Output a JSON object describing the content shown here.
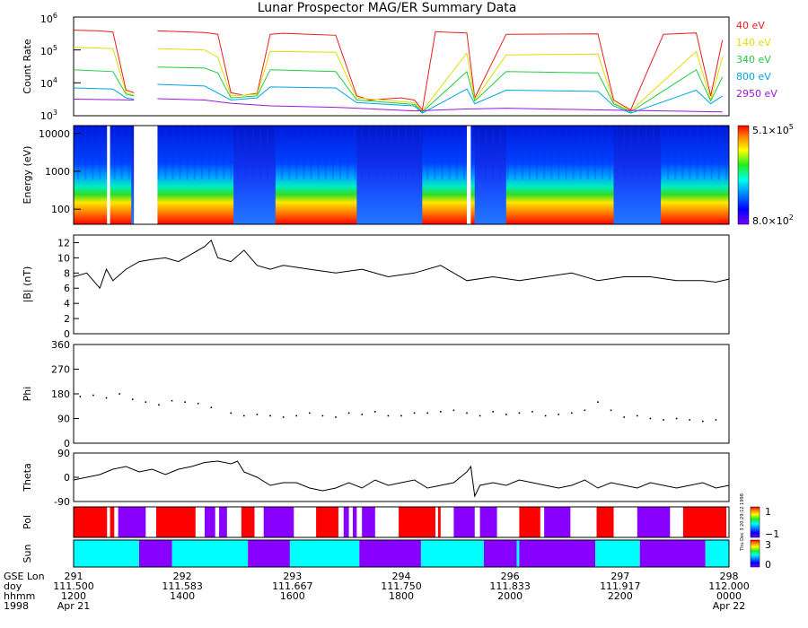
{
  "title": "Lunar Prospector MAG/ER Summary Data",
  "colors": {
    "frame": "#000000",
    "flux_40": "#ee1c1c",
    "flux_140": "#dede00",
    "flux_340": "#22cc44",
    "flux_800": "#00a6e0",
    "flux_2950": "#9a16d8",
    "pol_red": "#ff0000",
    "pol_purple": "#8800ff",
    "sun_cyan": "#00ffff",
    "sun_purple": "#8800ff"
  },
  "chart_data": [
    {
      "id": "count_rate",
      "type": "line",
      "ylabel": "Count Rate",
      "yscale": "log",
      "ylim": [
        1000,
        1000000
      ],
      "ytick_labels": [
        "10^3",
        "10^4",
        "10^5",
        "10^6"
      ],
      "legend_placement": "right",
      "gaps": [
        [
          111.546,
          111.564
        ]
      ],
      "series": [
        {
          "name": "40 eV",
          "color_key": "flux_40",
          "x": [
            111.5,
            111.52,
            111.53,
            111.54,
            111.546,
            111.564,
            111.6,
            111.61,
            111.62,
            111.63,
            111.64,
            111.65,
            111.66,
            111.68,
            111.7,
            111.716,
            111.726,
            111.75,
            111.76,
            111.766,
            111.776,
            111.79,
            111.8,
            111.806,
            111.83,
            111.9,
            111.912,
            111.925,
            111.95,
            111.975,
            111.986,
            111.995
          ],
          "values": [
            400000,
            380000,
            350000,
            6000,
            5000,
            380000,
            340000,
            300000,
            5000,
            4200,
            4800,
            300000,
            320000,
            300000,
            280000,
            4000,
            3000,
            3500,
            3000,
            1500,
            360000,
            340000,
            330000,
            3500,
            300000,
            310000,
            3000,
            1500,
            300000,
            330000,
            4000,
            200000
          ]
        },
        {
          "name": "140 eV",
          "color_key": "flux_140",
          "x": [
            111.5,
            111.53,
            111.54,
            111.546,
            111.564,
            111.6,
            111.61,
            111.62,
            111.64,
            111.65,
            111.7,
            111.716,
            111.76,
            111.766,
            111.8,
            111.806,
            111.83,
            111.9,
            111.912,
            111.925,
            111.975,
            111.986,
            111.995
          ],
          "values": [
            120000,
            110000,
            5000,
            4200,
            110000,
            100000,
            60000,
            4000,
            4500,
            90000,
            85000,
            3500,
            2500,
            1400,
            80000,
            3000,
            70000,
            75000,
            2500,
            1400,
            90000,
            3000,
            60000
          ]
        },
        {
          "name": "340 eV",
          "color_key": "flux_340",
          "x": [
            111.5,
            111.53,
            111.54,
            111.546,
            111.564,
            111.6,
            111.61,
            111.62,
            111.64,
            111.65,
            111.7,
            111.716,
            111.76,
            111.766,
            111.8,
            111.806,
            111.83,
            111.9,
            111.912,
            111.925,
            111.975,
            111.986,
            111.995
          ],
          "values": [
            25000,
            22000,
            4500,
            4000,
            30000,
            28000,
            20000,
            3500,
            4000,
            25000,
            22000,
            3000,
            2200,
            1300,
            22000,
            2800,
            22000,
            20000,
            2300,
            1300,
            25000,
            2800,
            15000
          ]
        },
        {
          "name": "800 eV",
          "color_key": "flux_800",
          "x": [
            111.5,
            111.53,
            111.54,
            111.546,
            111.564,
            111.6,
            111.62,
            111.64,
            111.65,
            111.7,
            111.716,
            111.76,
            111.766,
            111.8,
            111.806,
            111.83,
            111.9,
            111.912,
            111.925,
            111.975,
            111.986,
            111.995
          ],
          "values": [
            7000,
            6500,
            3500,
            3200,
            9000,
            8000,
            3000,
            3500,
            7500,
            7000,
            2500,
            2000,
            1200,
            6500,
            2300,
            6000,
            5500,
            2000,
            1200,
            6000,
            2300,
            4000
          ]
        },
        {
          "name": "2950 eV",
          "color_key": "flux_2950",
          "x": [
            111.5,
            111.546,
            111.564,
            111.6,
            111.62,
            111.65,
            111.7,
            111.76,
            111.8,
            111.83,
            111.9,
            111.95,
            111.995
          ],
          "values": [
            3200,
            3000,
            3300,
            3000,
            2400,
            2000,
            1800,
            1400,
            1600,
            1700,
            1500,
            1400,
            1300
          ]
        }
      ]
    },
    {
      "id": "energy_spectrogram",
      "type": "heatmap",
      "ylabel": "Energy (eV)",
      "yscale": "log",
      "ylim": [
        40,
        16000
      ],
      "ytick_labels": [
        "100",
        "1000",
        "10000"
      ],
      "colorbar_range": [
        800,
        510000
      ],
      "colorbar_max_label": "5.1×10^5",
      "colorbar_min_label": "8.0×10^2",
      "data_gaps": [
        [
          111.5255,
          111.5278
        ],
        [
          111.546,
          111.564
        ],
        [
          111.8,
          111.803
        ]
      ],
      "bright_intervals": [
        [
          111.5,
          111.544
        ],
        [
          111.564,
          111.622
        ],
        [
          111.654,
          111.716
        ],
        [
          111.766,
          111.806
        ],
        [
          111.83,
          111.912
        ],
        [
          111.948,
          112.0
        ]
      ]
    },
    {
      "id": "b_magnitude",
      "type": "line",
      "ylabel": "|B| (nT)",
      "ylim": [
        0,
        13
      ],
      "ytick_labels": [
        "0",
        "2",
        "4",
        "6",
        "8",
        "10",
        "12"
      ],
      "x": [
        111.5,
        111.51,
        111.52,
        111.525,
        111.53,
        111.54,
        111.55,
        111.56,
        111.57,
        111.58,
        111.59,
        111.6,
        111.605,
        111.61,
        111.62,
        111.63,
        111.64,
        111.65,
        111.66,
        111.68,
        111.7,
        111.72,
        111.74,
        111.76,
        111.78,
        111.8,
        111.82,
        111.84,
        111.86,
        111.88,
        111.9,
        111.92,
        111.94,
        111.96,
        111.98,
        111.99,
        112.0
      ],
      "values": [
        7.5,
        8.0,
        6.0,
        8.5,
        7.0,
        8.5,
        9.5,
        9.8,
        10.0,
        9.5,
        10.5,
        11.5,
        12.3,
        10.0,
        9.5,
        11.0,
        9.0,
        8.5,
        9.0,
        8.5,
        8.0,
        8.5,
        7.5,
        8.0,
        9.0,
        7.0,
        7.5,
        7.0,
        7.5,
        8.0,
        7.0,
        7.5,
        7.5,
        7.0,
        7.0,
        6.8,
        7.2
      ]
    },
    {
      "id": "phi",
      "type": "scatter",
      "ylabel": "Phi",
      "ylim": [
        0,
        360
      ],
      "ytick_labels": [
        "0",
        "90",
        "180",
        "270",
        "360"
      ],
      "x": [
        111.505,
        111.515,
        111.525,
        111.535,
        111.545,
        111.555,
        111.565,
        111.575,
        111.585,
        111.595,
        111.605,
        111.62,
        111.63,
        111.64,
        111.65,
        111.66,
        111.67,
        111.68,
        111.69,
        111.7,
        111.71,
        111.72,
        111.73,
        111.74,
        111.75,
        111.76,
        111.77,
        111.78,
        111.79,
        111.8,
        111.81,
        111.82,
        111.83,
        111.84,
        111.85,
        111.86,
        111.87,
        111.88,
        111.89,
        111.9,
        111.91,
        111.92,
        111.93,
        111.94,
        111.95,
        111.96,
        111.97,
        111.98,
        111.99
      ],
      "values": [
        170,
        175,
        165,
        180,
        160,
        150,
        140,
        155,
        150,
        145,
        130,
        110,
        100,
        105,
        100,
        95,
        100,
        110,
        100,
        95,
        110,
        105,
        115,
        100,
        100,
        110,
        110,
        115,
        120,
        110,
        100,
        115,
        105,
        110,
        115,
        100,
        105,
        110,
        120,
        150,
        120,
        95,
        100,
        90,
        85,
        90,
        85,
        80,
        85
      ]
    },
    {
      "id": "theta",
      "type": "line",
      "ylabel": "Theta",
      "ylim": [
        -90,
        90
      ],
      "ytick_labels": [
        "-90",
        "0",
        "90"
      ],
      "x": [
        111.5,
        111.51,
        111.52,
        111.53,
        111.54,
        111.55,
        111.56,
        111.57,
        111.58,
        111.59,
        111.6,
        111.61,
        111.62,
        111.625,
        111.63,
        111.64,
        111.65,
        111.66,
        111.67,
        111.68,
        111.69,
        111.7,
        111.71,
        111.72,
        111.73,
        111.74,
        111.75,
        111.76,
        111.77,
        111.78,
        111.79,
        111.8,
        111.803,
        111.806,
        111.81,
        111.82,
        111.83,
        111.84,
        111.85,
        111.86,
        111.87,
        111.88,
        111.89,
        111.9,
        111.91,
        111.92,
        111.93,
        111.94,
        111.95,
        111.96,
        111.97,
        111.98,
        111.99,
        112.0
      ],
      "values": [
        -10,
        0,
        10,
        30,
        40,
        20,
        30,
        10,
        30,
        40,
        55,
        60,
        50,
        60,
        20,
        0,
        -30,
        -20,
        -20,
        -40,
        -50,
        -40,
        -20,
        -40,
        -10,
        -30,
        -20,
        -10,
        -40,
        -30,
        -20,
        20,
        40,
        -70,
        -30,
        -20,
        -30,
        -10,
        -20,
        -30,
        -40,
        -30,
        -10,
        -40,
        -20,
        -30,
        -40,
        -20,
        -30,
        -40,
        -30,
        -20,
        -40,
        -30
      ]
    },
    {
      "id": "pol",
      "type": "heatmap",
      "ylabel": "Pol",
      "colorbar_labels": [
        "1",
        "−1"
      ],
      "segments": [
        {
          "x0": 111.5,
          "x1": 111.5255,
          "val": 1
        },
        {
          "x0": 111.5278,
          "x1": 111.531,
          "val": 1
        },
        {
          "x0": 111.534,
          "x1": 111.555,
          "val": -1
        },
        {
          "x0": 111.563,
          "x1": 111.593,
          "val": 1
        },
        {
          "x0": 111.6,
          "x1": 111.608,
          "val": -1
        },
        {
          "x0": 111.611,
          "x1": 111.617,
          "val": -1
        },
        {
          "x0": 111.628,
          "x1": 111.638,
          "val": 1
        },
        {
          "x0": 111.645,
          "x1": 111.668,
          "val": -1
        },
        {
          "x0": 111.685,
          "x1": 111.702,
          "val": 1
        },
        {
          "x0": 111.706,
          "x1": 111.71,
          "val": -1
        },
        {
          "x0": 111.713,
          "x1": 111.716,
          "val": -1
        },
        {
          "x0": 111.72,
          "x1": 111.73,
          "val": -1
        },
        {
          "x0": 111.748,
          "x1": 111.776,
          "val": 1
        },
        {
          "x0": 111.778,
          "x1": 111.78,
          "val": 1
        },
        {
          "x0": 111.79,
          "x1": 111.806,
          "val": -1
        },
        {
          "x0": 111.81,
          "x1": 111.823,
          "val": -1
        },
        {
          "x0": 111.84,
          "x1": 111.856,
          "val": 1
        },
        {
          "x0": 111.859,
          "x1": 111.879,
          "val": -1
        },
        {
          "x0": 111.899,
          "x1": 111.912,
          "val": 1
        },
        {
          "x0": 111.93,
          "x1": 111.955,
          "val": -1
        },
        {
          "x0": 111.965,
          "x1": 111.998,
          "val": 1
        }
      ]
    },
    {
      "id": "sun",
      "type": "heatmap",
      "ylabel": "Sun",
      "colorbar_labels": [
        "3",
        "0"
      ],
      "segments": [
        {
          "x0": 111.5,
          "x1": 111.55,
          "val": 3
        },
        {
          "x0": 111.55,
          "x1": 111.575,
          "val": 0
        },
        {
          "x0": 111.575,
          "x1": 111.633,
          "val": 3
        },
        {
          "x0": 111.633,
          "x1": 111.665,
          "val": 0
        },
        {
          "x0": 111.665,
          "x1": 111.718,
          "val": 3
        },
        {
          "x0": 111.718,
          "x1": 111.765,
          "val": 0
        },
        {
          "x0": 111.765,
          "x1": 111.813,
          "val": 3
        },
        {
          "x0": 111.813,
          "x1": 111.838,
          "val": 0
        },
        {
          "x0": 111.838,
          "x1": 111.84,
          "val": 3
        },
        {
          "x0": 111.84,
          "x1": 111.898,
          "val": 0
        },
        {
          "x0": 111.898,
          "x1": 111.932,
          "val": 3
        },
        {
          "x0": 111.932,
          "x1": 111.982,
          "val": 0
        },
        {
          "x0": 111.982,
          "x1": 112.0,
          "val": 3
        }
      ]
    }
  ],
  "sidebar_note": "Thu Dec 3 20:29:12 1998",
  "time_axis": {
    "xlim": [
      111.5,
      112.0
    ],
    "row_labels": [
      "GSE Lon",
      "doy",
      "hhmm",
      "1998"
    ],
    "ticks": [
      {
        "doy": 111.5,
        "lon": "291",
        "doy_label": "111.500",
        "hhmm": "1200",
        "date": "Apr 21"
      },
      {
        "doy": 111.583,
        "lon": "292",
        "doy_label": "111.583",
        "hhmm": "1400",
        "date": ""
      },
      {
        "doy": 111.667,
        "lon": "293",
        "doy_label": "111.667",
        "hhmm": "1600",
        "date": ""
      },
      {
        "doy": 111.75,
        "lon": "294",
        "doy_label": "111.750",
        "hhmm": "1800",
        "date": ""
      },
      {
        "doy": 111.833,
        "lon": "296",
        "doy_label": "111.833",
        "hhmm": "2000",
        "date": ""
      },
      {
        "doy": 111.917,
        "lon": "297",
        "doy_label": "111.917",
        "hhmm": "2200",
        "date": ""
      },
      {
        "doy": 112.0,
        "lon": "298",
        "doy_label": "112.000",
        "hhmm": "0000",
        "date": "Apr 22"
      }
    ]
  }
}
